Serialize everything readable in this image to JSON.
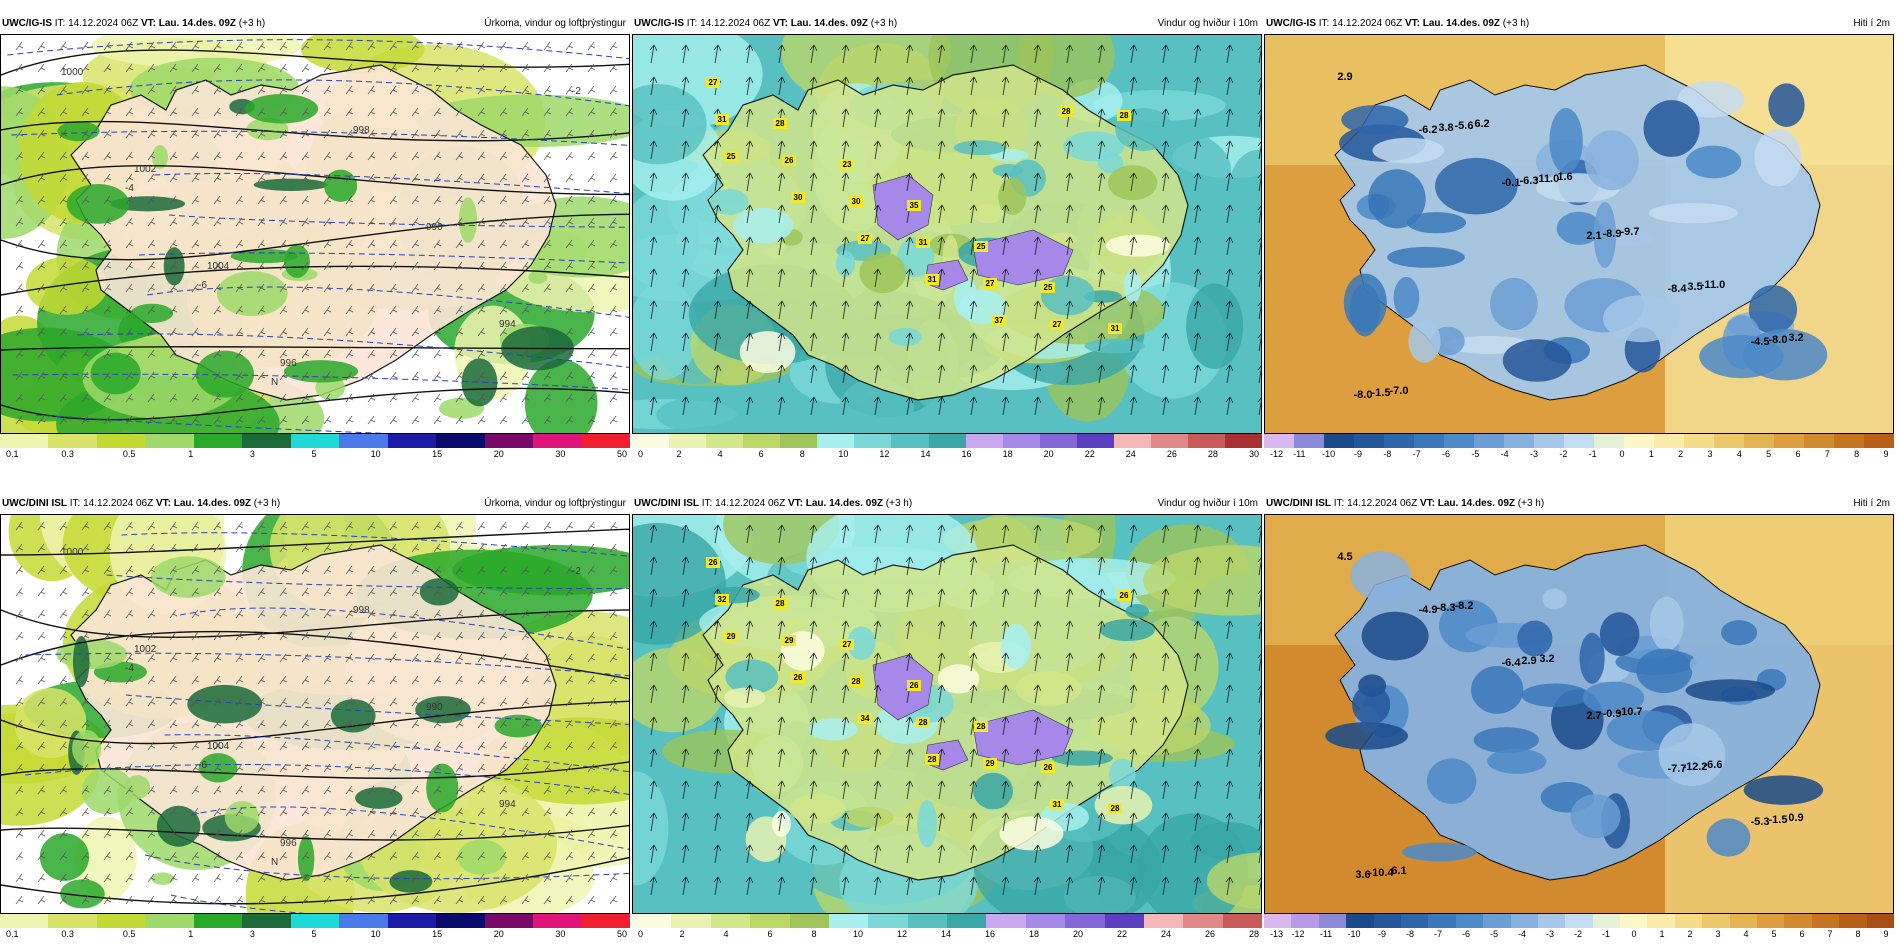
{
  "panels": [
    {
      "id": "p1",
      "model": "UWC/IG-IS",
      "it_label": "IT:",
      "it_value": "14.12.2024 06Z",
      "vt_label": "VT:",
      "vt_value": "Lau. 14.des. 09Z",
      "lead": "(+3 h)",
      "title": "Úrkoma, vindur og loftþrýstingur",
      "variable": "precip",
      "colorbar": {
        "colors": [
          "#eef5b0",
          "#d8e36a",
          "#c4d934",
          "#9ed96a",
          "#2aa82a",
          "#1a6a3a",
          "#1fd8d8",
          "#4a7ae8",
          "#1b1ba8",
          "#0a0a6a",
          "#7a0a6a",
          "#e0147a",
          "#f01e2e"
        ],
        "ticks": [
          "0.1",
          "0.3",
          "0.5",
          "1",
          "3",
          "5",
          "10",
          "15",
          "20",
          "30",
          "50"
        ]
      },
      "map_labels": [
        "1000",
        "1002",
        "1004",
        "996",
        "998",
        "990",
        "994",
        "-2",
        "-4",
        "-6",
        "N"
      ]
    },
    {
      "id": "p2",
      "model": "UWC/IG-IS",
      "it_label": "IT:",
      "it_value": "14.12.2024 06Z",
      "vt_label": "VT:",
      "vt_value": "Lau. 14.des. 09Z",
      "lead": "(+3 h)",
      "title": "Vindur og hviður í 10m",
      "variable": "wind",
      "colorbar": {
        "colors": [
          "#fcfde0",
          "#e8f2b2",
          "#d2e68a",
          "#bcd66a",
          "#9ec45a",
          "#a8f0f0",
          "#7ad8d8",
          "#58c0c0",
          "#3aa6a6",
          "#c8a8f0",
          "#a688e8",
          "#8466d8",
          "#5c3ec0",
          "#f4b8b8",
          "#e08888",
          "#c85a5a",
          "#a83030"
        ],
        "ticks": [
          "0",
          "2",
          "4",
          "6",
          "8",
          "10",
          "12",
          "14",
          "16",
          "18",
          "20",
          "22",
          "24",
          "26",
          "28",
          "30"
        ]
      },
      "gust_labels": [
        "27",
        "28",
        "23",
        "35",
        "25",
        "25",
        "31",
        "31",
        "26",
        "30",
        "31",
        "27",
        "27",
        "28",
        "25",
        "30",
        "27",
        "31",
        "37",
        "28"
      ]
    },
    {
      "id": "p3",
      "model": "UWC/IG-IS",
      "it_label": "IT:",
      "it_value": "14.12.2024 06Z",
      "vt_label": "VT:",
      "vt_value": "Lau. 14.des. 09Z",
      "lead": "(+3 h)",
      "title": "Hiti í 2m",
      "variable": "temp",
      "colorbar": {
        "colors": [
          "#d8b8f0",
          "#8a8ad8",
          "#1a4a8a",
          "#24569a",
          "#2e66aa",
          "#3a78ba",
          "#4c8ac8",
          "#6a9ed4",
          "#88b2de",
          "#a6c8e8",
          "#c4dcf0",
          "#e4f0d8",
          "#fdf7c8",
          "#faeca8",
          "#f4dc88",
          "#ecc86a",
          "#e4b452",
          "#dc9e3e",
          "#d28a2e",
          "#c67420",
          "#b86018"
        ],
        "ticks": [
          "-12",
          "-11",
          "-10",
          "-9",
          "-8",
          "-7",
          "-6",
          "-5",
          "-4",
          "-3",
          "-2",
          "-1",
          "0",
          "1",
          "2",
          "3",
          "4",
          "5",
          "6",
          "7",
          "8",
          "9"
        ]
      },
      "temp_labels": [
        "2.9",
        "-6.2",
        "-0.1",
        "2.1",
        "-8.4",
        "-4.5",
        "-8.0",
        "3.8",
        "-6.3",
        "-8.9",
        "3.5",
        "-8.0",
        "-1.5",
        "-5.6",
        "-11.0",
        "-9.7",
        "-11.0",
        "3.2",
        "-7.0",
        "6.2",
        "1.6"
      ]
    },
    {
      "id": "p4",
      "model": "UWC/DINI ISL",
      "it_label": "IT:",
      "it_value": "14.12.2024 06Z",
      "vt_label": "VT:",
      "vt_value": "Lau. 14.des. 09Z",
      "lead": "(+3 h)",
      "title": "Úrkoma, vindur og loftþrýstingur",
      "variable": "precip",
      "colorbar": {
        "colors": [
          "#eef5b0",
          "#d8e36a",
          "#c4d934",
          "#9ed96a",
          "#2aa82a",
          "#1a6a3a",
          "#1fd8d8",
          "#4a7ae8",
          "#1b1ba8",
          "#0a0a6a",
          "#7a0a6a",
          "#e0147a",
          "#f01e2e"
        ],
        "ticks": [
          "0.1",
          "0.3",
          "0.5",
          "1",
          "3",
          "5",
          "10",
          "15",
          "20",
          "30",
          "50"
        ]
      },
      "map_labels": [
        "1000",
        "1002",
        "1004",
        "996",
        "998",
        "990",
        "994",
        "-2",
        "-4",
        "-6",
        "N"
      ]
    },
    {
      "id": "p5",
      "model": "UWC/DINI ISL",
      "it_label": "IT:",
      "it_value": "14.12.2024 06Z",
      "vt_label": "VT:",
      "vt_value": "Lau. 14.des. 09Z",
      "lead": "(+3 h)",
      "title": "Vindur og hviður í 10m",
      "variable": "wind",
      "colorbar": {
        "colors": [
          "#fcfde0",
          "#e8f2b2",
          "#d2e68a",
          "#bcd66a",
          "#9ec45a",
          "#a8f0f0",
          "#7ad8d8",
          "#58c0c0",
          "#3aa6a6",
          "#c8a8f0",
          "#a688e8",
          "#8466d8",
          "#5c3ec0",
          "#f4b8b8",
          "#e08888",
          "#c85a5a"
        ],
        "ticks": [
          "0",
          "2",
          "4",
          "6",
          "8",
          "10",
          "12",
          "14",
          "16",
          "18",
          "20",
          "22",
          "24",
          "26",
          "28"
        ]
      },
      "gust_labels": [
        "26",
        "28",
        "27",
        "26",
        "28",
        "26",
        "28",
        "32",
        "29",
        "28",
        "28",
        "29",
        "31",
        "26",
        "29",
        "26",
        "34",
        "28"
      ]
    },
    {
      "id": "p6",
      "model": "UWC/DINI ISL",
      "it_label": "IT:",
      "it_value": "14.12.2024 06Z",
      "vt_label": "VT:",
      "vt_value": "Lau. 14.des. 09Z",
      "lead": "(+3 h)",
      "title": "Hiti í 2m",
      "variable": "temp",
      "colorbar": {
        "colors": [
          "#d8b8f0",
          "#b89ae8",
          "#8a8ad8",
          "#1a4a8a",
          "#24569a",
          "#2e66aa",
          "#3a78ba",
          "#4c8ac8",
          "#6a9ed4",
          "#88b2de",
          "#a6c8e8",
          "#c4dcf0",
          "#e4f0d8",
          "#fdf7c8",
          "#faeca8",
          "#f4dc88",
          "#ecc86a",
          "#e4b452",
          "#dc9e3e",
          "#d28a2e",
          "#c67420",
          "#b86018",
          "#a84e12"
        ],
        "ticks": [
          "-13",
          "-12",
          "-11",
          "-10",
          "-9",
          "-8",
          "-7",
          "-6",
          "-5",
          "-4",
          "-3",
          "-2",
          "-1",
          "0",
          "1",
          "2",
          "3",
          "4",
          "5",
          "6",
          "7",
          "8",
          "9"
        ]
      },
      "temp_labels": [
        "4.5",
        "-4.9",
        "-6.4",
        "2.7",
        "-7.7",
        "-5.3",
        "3.6",
        "-8.3",
        "2.9",
        "-0.9",
        "-12.2",
        "-1.5",
        "-10.4",
        "-8.2",
        "3.2",
        "-10.7",
        "-6.6",
        "0.9",
        "6.1"
      ]
    }
  ]
}
